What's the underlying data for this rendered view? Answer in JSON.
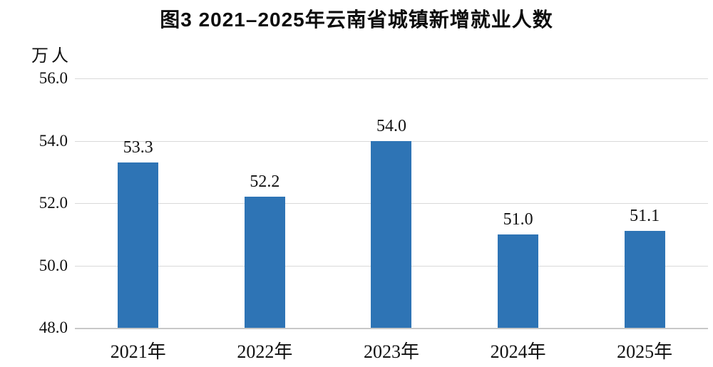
{
  "chart_data": {
    "type": "bar",
    "title": "图3 2021–2025年云南省城镇新增就业人数",
    "ylabel": "万人",
    "xlabel": "",
    "categories": [
      "2021年",
      "2022年",
      "2023年",
      "2024年",
      "2025年"
    ],
    "values": [
      53.3,
      52.2,
      54.0,
      51.0,
      51.1
    ],
    "value_labels": [
      "53.3",
      "52.2",
      "54.0",
      "51.0",
      "51.1"
    ],
    "ylim": [
      48.0,
      56.0
    ],
    "y_ticks": [
      "56.0",
      "54.0",
      "52.0",
      "50.0",
      "48.0"
    ],
    "grid": true,
    "legend_position": "none",
    "bar_color": "#2E74B5",
    "gridline_color": "#D9D9D9",
    "axis_line_color": "#C8C8C8",
    "text_color": "#111111"
  }
}
